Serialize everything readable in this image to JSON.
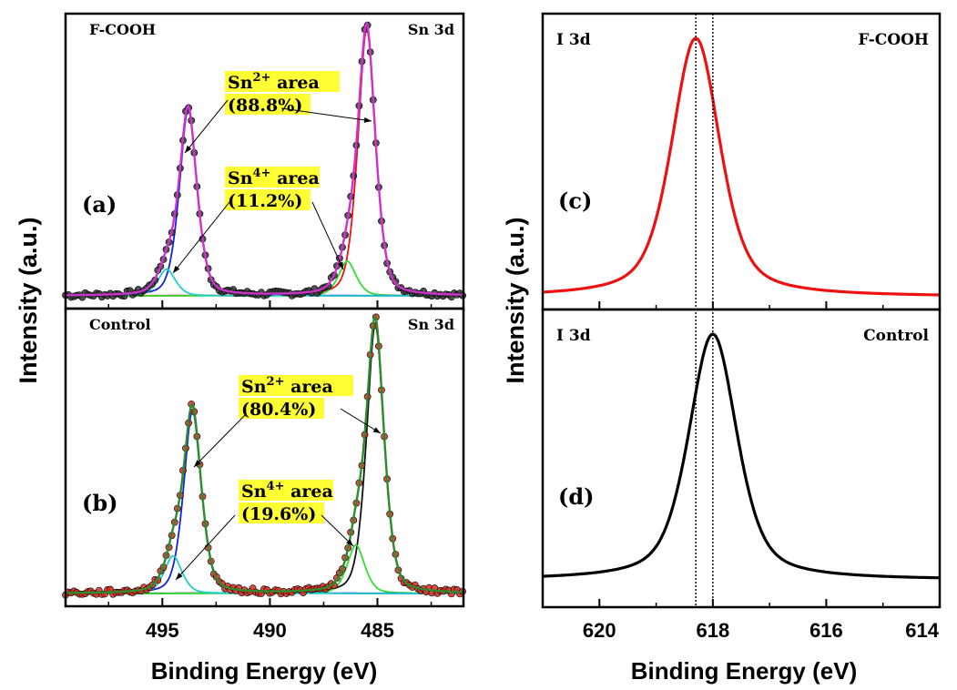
{
  "figure": {
    "left_ylabel": "Intensity (a.u.)",
    "right_ylabel": "Intensity (a.u.)",
    "left_xlabel": "Binding Energy (eV)",
    "right_xlabel": "Binding Energy (eV)",
    "colors": {
      "fcooh_points": "#333333",
      "control_points": "#d62a1e",
      "envelope_fcooh": "#cc33cc",
      "envelope_control": "#2e8b2e",
      "sn2_fcooh": "#ee1111",
      "sn2_control": "#111111",
      "sn4_component": "#33dd33",
      "sn2_low": "#1122dd",
      "sn4_low": "#22cccc",
      "i3d_fcooh": "#ee1111",
      "i3d_control": "#000000",
      "highlight": "#ffff33"
    }
  },
  "chart_data": [
    {
      "panel_label": "(a)",
      "type": "line",
      "sample": "F-COOH",
      "core_level": "Sn 3d",
      "xlim": [
        499.5,
        481
      ],
      "x_ticks": [
        "495",
        "490",
        "485"
      ],
      "annotations": [
        {
          "line1": "Sn",
          "sup": "2+",
          "line1_rest": " area",
          "line2": "(88.8%)"
        },
        {
          "line1": "Sn",
          "sup": "4+",
          "line1_rest": " area",
          "line2": "(11.2%)"
        }
      ],
      "peaks": [
        {
          "name": "Sn 3d5/2 Sn2+",
          "center": 485.5,
          "height": 1.0
        },
        {
          "name": "Sn 3d5/2 Sn4+",
          "center": 486.4,
          "height": 0.13
        },
        {
          "name": "Sn 3d3/2 Sn2+",
          "center": 493.8,
          "height": 0.7
        },
        {
          "name": "Sn 3d3/2 Sn4+",
          "center": 494.8,
          "height": 0.1
        }
      ]
    },
    {
      "panel_label": "(b)",
      "type": "line",
      "sample": "Control",
      "core_level": "Sn 3d",
      "xlim": [
        499.5,
        481
      ],
      "x_ticks": [
        "495",
        "490",
        "485"
      ],
      "annotations": [
        {
          "line1": "Sn",
          "sup": "2+",
          "line1_rest": " area",
          "line2": "(80.4%)"
        },
        {
          "line1": "Sn",
          "sup": "4+",
          "line1_rest": " area",
          "line2": "(19.6%)"
        }
      ],
      "peaks": [
        {
          "name": "Sn 3d5/2 Sn2+",
          "center": 485.1,
          "height": 1.0
        },
        {
          "name": "Sn 3d5/2 Sn4+",
          "center": 486.0,
          "height": 0.18
        },
        {
          "name": "Sn 3d3/2 Sn2+",
          "center": 493.6,
          "height": 0.68
        },
        {
          "name": "Sn 3d3/2 Sn4+",
          "center": 494.5,
          "height": 0.14
        }
      ]
    },
    {
      "panel_label": "(c)",
      "type": "line",
      "sample": "F-COOH",
      "core_level": "I 3d",
      "xlim": [
        621,
        614
      ],
      "x_ticks": [
        "620",
        "618",
        "616",
        "614"
      ],
      "peak_center": 618.3
    },
    {
      "panel_label": "(d)",
      "type": "line",
      "sample": "Control",
      "core_level": "I 3d",
      "xlim": [
        621,
        614
      ],
      "x_ticks": [
        "620",
        "618",
        "616",
        "614"
      ],
      "peak_center": 618.0
    }
  ]
}
